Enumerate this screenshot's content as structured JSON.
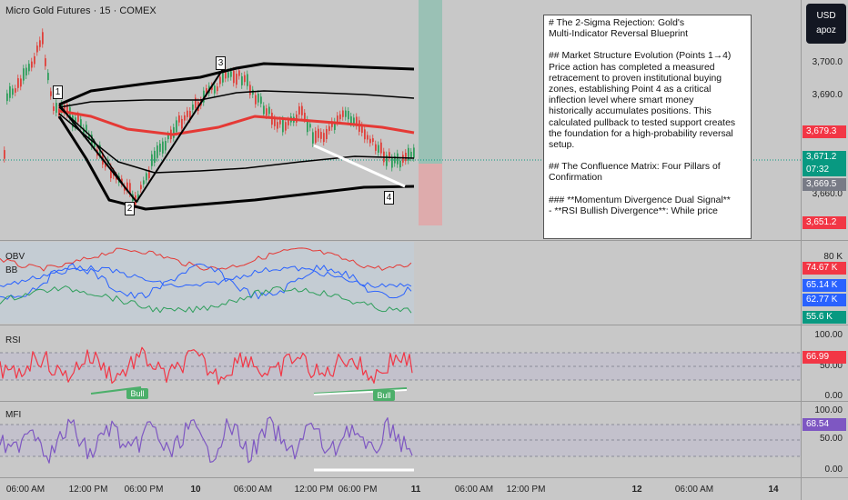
{
  "chart_title": "Micro Gold Futures · 15 · COMEX",
  "currency_button": {
    "currency": "USD",
    "unit": "apoz"
  },
  "price_axis": {
    "labels": [
      "3,700.0",
      "3,690.0",
      "3,660.0"
    ]
  },
  "price_tags": [
    {
      "value": "3,679.3",
      "color": "#f23645"
    },
    {
      "value": "3,671.2",
      "color": "#089981"
    },
    {
      "value": "07:32",
      "color": "#089981"
    },
    {
      "value": "3,669.5",
      "color": "#787b86"
    },
    {
      "value": "3,651.2",
      "color": "#f23645"
    }
  ],
  "point_labels": [
    "1",
    "2",
    "3",
    "4"
  ],
  "obv_pane": {
    "labels": [
      "OBV",
      "BB"
    ],
    "axis_label": "80 K",
    "tags": [
      {
        "value": "74.67 K",
        "color": "#f23645"
      },
      {
        "value": "65.14 K",
        "color": "#2962ff"
      },
      {
        "value": "62.77 K",
        "color": "#2962ff"
      },
      {
        "value": "55.6 K",
        "color": "#089981"
      }
    ]
  },
  "rsi_pane": {
    "label": "RSI",
    "axis_labels": [
      "100.00",
      "50.00",
      "0.00"
    ],
    "current": "66.99",
    "current_color": "#f23645",
    "bull_label": "Bull"
  },
  "mfi_pane": {
    "label": "MFI",
    "axis_labels": [
      "100.00",
      "50.00",
      "0.00"
    ],
    "current": "68.54",
    "current_color": "#7e57c2"
  },
  "time_axis": [
    {
      "label": "06:00 AM",
      "bold": false
    },
    {
      "label": "12:00 PM",
      "bold": false
    },
    {
      "label": "06:00 PM",
      "bold": false
    },
    {
      "label": "10",
      "bold": true
    },
    {
      "label": "06:00 AM",
      "bold": false
    },
    {
      "label": "12:00 PM",
      "bold": false
    },
    {
      "label": "06:00 PM",
      "bold": false
    },
    {
      "label": "11",
      "bold": true
    },
    {
      "label": "06:00 AM",
      "bold": false
    },
    {
      "label": "12:00 PM",
      "bold": false
    },
    {
      "label": "12",
      "bold": true
    },
    {
      "label": "06:00 AM",
      "bold": false
    },
    {
      "label": "14",
      "bold": true
    }
  ],
  "note": {
    "lines": [
      "# The 2-Sigma Rejection: Gold's",
      "Multi-Indicator Reversal Blueprint",
      "",
      "## Market Structure Evolution (Points 1→4)",
      "Price action has completed a measured",
      "retracement to proven institutional buying",
      "zones, establishing Point 4 as a critical",
      "inflection level where smart money",
      "historically accumulates positions. This",
      "calculated pullback to tested support creates",
      "the foundation for a high-probability reversal",
      "setup.",
      "",
      "## The Confluence Matrix: Four Pillars of",
      "Confirmation",
      "",
      "### **Momentum Divergence Dual Signal**",
      "- **RSI Bullish Divergence**: While price"
    ]
  }
}
